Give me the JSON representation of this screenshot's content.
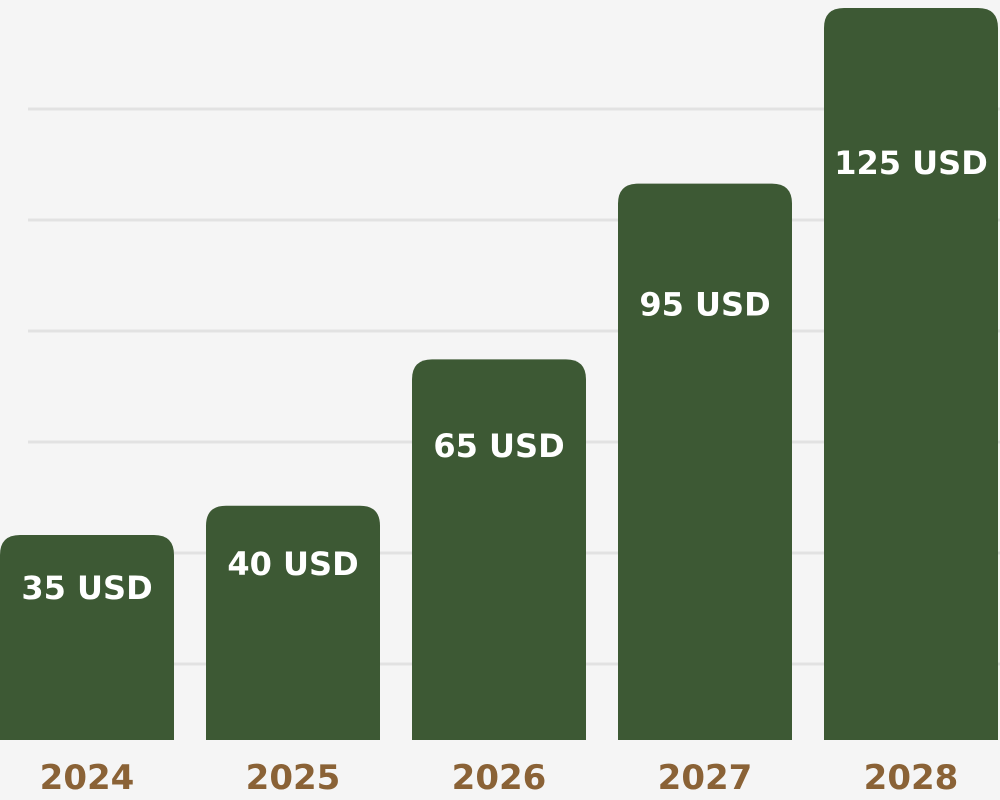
{
  "chart_data": {
    "type": "bar",
    "categories": [
      "2024",
      "2025",
      "2026",
      "2027",
      "2028"
    ],
    "values": [
      35,
      40,
      65,
      95,
      125
    ],
    "value_labels": [
      "35 USD",
      "40 USD",
      "65 USD",
      "95 USD",
      "125 USD"
    ],
    "grid": true,
    "ylim": [
      0,
      125
    ],
    "colors": {
      "bar": "#3d5934",
      "grid": "#e2e2e2",
      "tick_text": "#8a6236",
      "value_text": "#ffffff",
      "background": "#f5f5f5"
    }
  }
}
